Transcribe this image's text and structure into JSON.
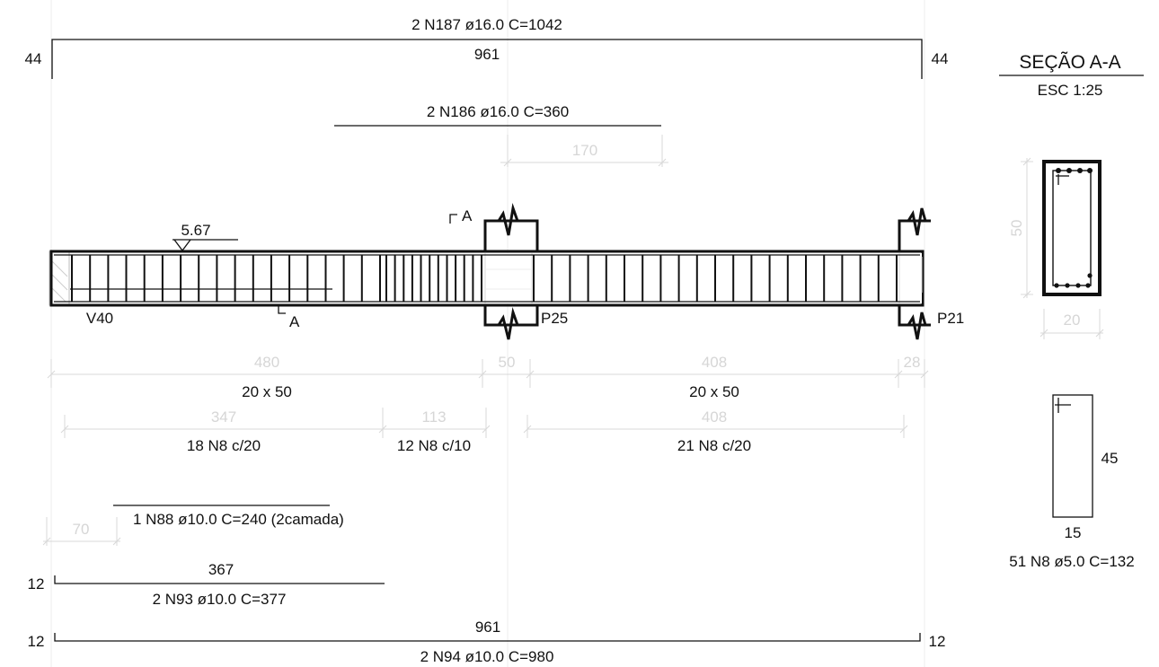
{
  "bars": {
    "n187": {
      "label": "2 N187 ø16.0  C=1042",
      "dim": "961",
      "hook_left": "44",
      "hook_right": "44"
    },
    "n186": {
      "label": "2 N186 ø16.0  C=360",
      "dim": "170"
    },
    "n88": {
      "label": "1 N88 ø10.0  C=240 (2camada)",
      "dim": "70"
    },
    "n93": {
      "label": "2 N93 ø10.0  C=377",
      "dim": "367",
      "hook_left": "12"
    },
    "n94": {
      "label": "2 N94 ø10.0  C=980",
      "dim": "961",
      "hook_left": "12",
      "hook_right": "12"
    }
  },
  "beam": {
    "level": "5.67",
    "support_left": "V40",
    "pillar_middle": "P25",
    "pillar_right": "P21",
    "section_mark": "A",
    "span1": {
      "length": "480",
      "section": "20 x 50"
    },
    "pillar_width": "50",
    "span2": {
      "length": "408",
      "section": "20 x 50"
    },
    "end_width": "28",
    "stirrups": [
      {
        "dim": "347",
        "label": "18 N8 c/20",
        "count": 18
      },
      {
        "dim": "113",
        "label": "12 N8 c/10",
        "count": 12
      },
      {
        "dim": "408",
        "label": "21 N8 c/20",
        "count": 21
      }
    ]
  },
  "section": {
    "title": "SEÇÃO A-A",
    "scale": "ESC 1:25",
    "height": "50",
    "width": "20"
  },
  "stirrup_detail": {
    "height": "45",
    "width": "15",
    "label": "51 N8 ø5.0  C=132"
  }
}
